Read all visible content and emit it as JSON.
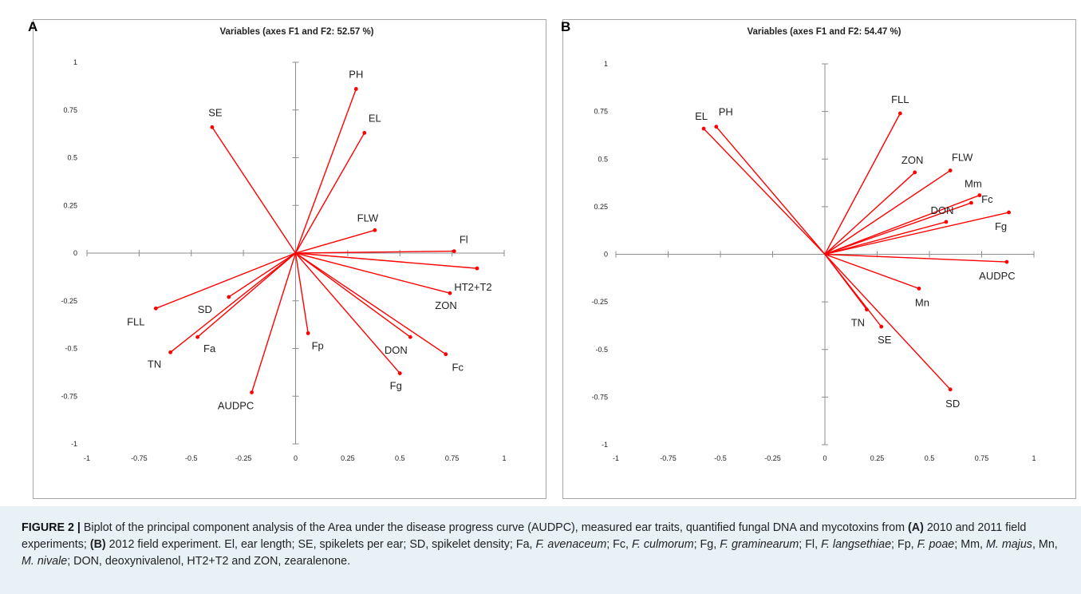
{
  "panels": {
    "a": {
      "letter": "A",
      "chart_data": {
        "type": "scatter",
        "title": "Variables (axes F1 and F2: 52.57 %)",
        "xlim": [
          -1,
          1
        ],
        "ylim": [
          -1,
          1
        ],
        "x_ticks": [
          "-1",
          "-0.75",
          "-0.5",
          "-0.25",
          "0",
          "0.25",
          "0.5",
          "0.75",
          "1"
        ],
        "y_ticks": [
          "1",
          "0.75",
          "0.5",
          "0.25",
          "0",
          "-0.25",
          "-0.5",
          "-0.75",
          "-1"
        ],
        "line_color": "#ff0000",
        "vectors": [
          {
            "label": "PH",
            "x": 0.29,
            "y": 0.86
          },
          {
            "label": "EL",
            "x": 0.33,
            "y": 0.63
          },
          {
            "label": "SE",
            "x": -0.4,
            "y": 0.66
          },
          {
            "label": "FLW",
            "x": 0.38,
            "y": 0.12
          },
          {
            "label": "Fl",
            "x": 0.76,
            "y": 0.01
          },
          {
            "label": "HT2+T2",
            "x": 0.87,
            "y": -0.08
          },
          {
            "label": "ZON",
            "x": 0.74,
            "y": -0.21
          },
          {
            "label": "DON",
            "x": 0.55,
            "y": -0.44
          },
          {
            "label": "Fc",
            "x": 0.72,
            "y": -0.53
          },
          {
            "label": "Fg",
            "x": 0.5,
            "y": -0.63
          },
          {
            "label": "Fp",
            "x": 0.06,
            "y": -0.42
          },
          {
            "label": "AUDPC",
            "x": -0.21,
            "y": -0.73
          },
          {
            "label": "Fa",
            "x": -0.47,
            "y": -0.44
          },
          {
            "label": "TN",
            "x": -0.6,
            "y": -0.52
          },
          {
            "label": "SD",
            "x": -0.32,
            "y": -0.23
          },
          {
            "label": "FLL",
            "x": -0.67,
            "y": -0.29
          }
        ]
      }
    },
    "b": {
      "letter": "B",
      "chart_data": {
        "type": "scatter",
        "title": "Variables (axes F1 and F2: 54.47 %)",
        "xlim": [
          -1,
          1
        ],
        "ylim": [
          -1,
          1
        ],
        "x_ticks": [
          "-1",
          "-0.75",
          "-0.5",
          "-0.25",
          "0",
          "0.25",
          "0.5",
          "0.75",
          "1"
        ],
        "y_ticks": [
          "1",
          "0.75",
          "0.5",
          "0.25",
          "0",
          "-0.25",
          "-0.5",
          "-0.75",
          "-1"
        ],
        "line_color": "#ff0000",
        "vectors": [
          {
            "label": "EL",
            "x": -0.58,
            "y": 0.66
          },
          {
            "label": "PH",
            "x": -0.52,
            "y": 0.67
          },
          {
            "label": "FLL",
            "x": 0.36,
            "y": 0.74
          },
          {
            "label": "ZON",
            "x": 0.43,
            "y": 0.43
          },
          {
            "label": "FLW",
            "x": 0.6,
            "y": 0.44
          },
          {
            "label": "Mm",
            "x": 0.74,
            "y": 0.31
          },
          {
            "label": "Fc",
            "x": 0.7,
            "y": 0.27
          },
          {
            "label": "DON",
            "x": 0.58,
            "y": 0.17
          },
          {
            "label": "Fg",
            "x": 0.88,
            "y": 0.22
          },
          {
            "label": "AUDPC",
            "x": 0.87,
            "y": -0.04
          },
          {
            "label": "Mn",
            "x": 0.45,
            "y": -0.18
          },
          {
            "label": "TN",
            "x": 0.2,
            "y": -0.29
          },
          {
            "label": "SE",
            "x": 0.27,
            "y": -0.38
          },
          {
            "label": "SD",
            "x": 0.6,
            "y": -0.71
          }
        ]
      }
    }
  },
  "caption": {
    "figure_label": "FIGURE 2 |",
    "segments": [
      {
        "t": " Biplot of the principal component analysis of the Area under the disease progress curve (AUDPC), measured ear traits, quantified fungal DNA and mycotoxins from ",
        "s": "n"
      },
      {
        "t": "(A)",
        "s": "b"
      },
      {
        "t": " 2010 and 2011 field experiments; ",
        "s": "n"
      },
      {
        "t": "(B)",
        "s": "b"
      },
      {
        "t": " 2012 field experiment. El, ear length; SE, spikelets per ear; SD, spikelet density; Fa, ",
        "s": "n"
      },
      {
        "t": "F. avenaceum",
        "s": "i"
      },
      {
        "t": "; Fc, ",
        "s": "n"
      },
      {
        "t": "F. culmorum",
        "s": "i"
      },
      {
        "t": "; Fg, ",
        "s": "n"
      },
      {
        "t": "F. graminearum",
        "s": "i"
      },
      {
        "t": "; Fl, ",
        "s": "n"
      },
      {
        "t": "F. langsethiae",
        "s": "i"
      },
      {
        "t": "; Fp, ",
        "s": "n"
      },
      {
        "t": "F. poae",
        "s": "i"
      },
      {
        "t": "; Mm, ",
        "s": "n"
      },
      {
        "t": "M.  majus",
        "s": "i"
      },
      {
        "t": ", Mn, ",
        "s": "n"
      },
      {
        "t": "M. nivale",
        "s": "i"
      },
      {
        "t": "; DON, deoxynivalenol, HT2+T2 and ZON, zearalenone.",
        "s": "n"
      }
    ]
  }
}
